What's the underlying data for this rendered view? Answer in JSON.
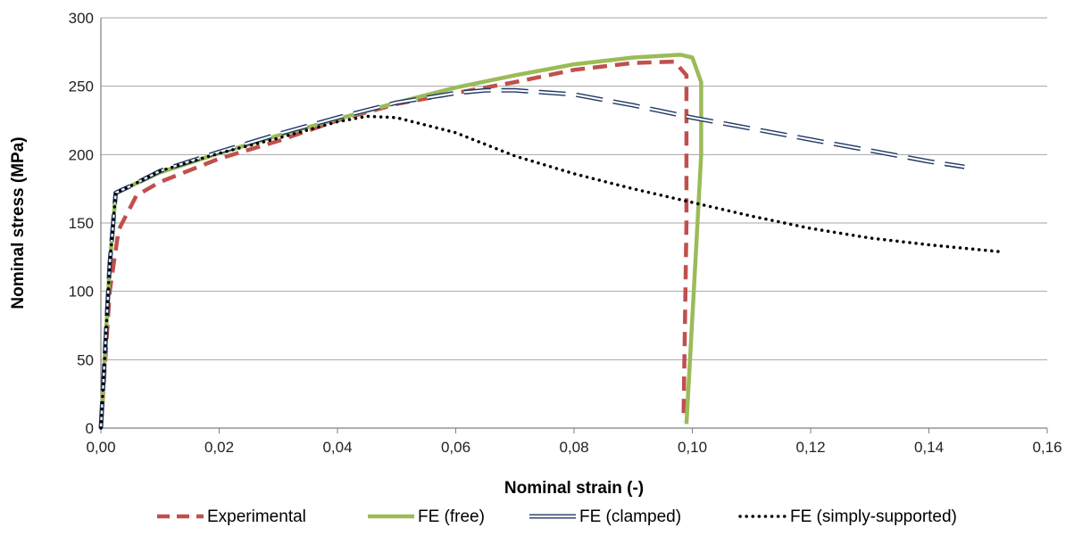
{
  "chart_data": {
    "type": "line",
    "title": "",
    "xlabel": "Nominal strain (-)",
    "ylabel": "Nominal stress (MPa)",
    "xlim": [
      0,
      0.16
    ],
    "ylim": [
      0,
      300
    ],
    "x_ticks": [
      0,
      0.02,
      0.04,
      0.06,
      0.08,
      0.1,
      0.12,
      0.14,
      0.16
    ],
    "x_tick_labels": [
      "0,00",
      "0,02",
      "0,04",
      "0,06",
      "0,08",
      "0,10",
      "0,12",
      "0,14",
      "0,16"
    ],
    "y_ticks": [
      0,
      50,
      100,
      150,
      200,
      250,
      300
    ],
    "y_tick_labels": [
      "0",
      "50",
      "100",
      "150",
      "200",
      "250",
      "300"
    ],
    "grid": "horizontal",
    "legend_position": "bottom",
    "series": [
      {
        "name": "Experimental",
        "style": "dashed",
        "color": "#C0504D",
        "x": [
          0,
          0.0015,
          0.003,
          0.006,
          0.01,
          0.02,
          0.03,
          0.04,
          0.05,
          0.06,
          0.07,
          0.08,
          0.09,
          0.097,
          0.099,
          0.099,
          0.0985
        ],
        "y": [
          0,
          100,
          145,
          170,
          180,
          197,
          210,
          225,
          237,
          245,
          253,
          262,
          267,
          268,
          258,
          150,
          5
        ]
      },
      {
        "name": "FE (free)",
        "style": "solid",
        "color": "#9BBB59",
        "x": [
          0,
          0.0015,
          0.0025,
          0.005,
          0.01,
          0.02,
          0.03,
          0.04,
          0.05,
          0.06,
          0.07,
          0.08,
          0.09,
          0.098,
          0.1,
          0.1015,
          0.1015,
          0.1005,
          0.099
        ],
        "y": [
          0,
          120,
          172,
          177,
          187,
          201,
          214,
          226,
          238,
          249,
          258,
          266,
          271,
          273,
          271,
          253,
          200,
          120,
          3
        ]
      },
      {
        "name": "FE (clamped)",
        "style": "dashed",
        "color": "#1F3864",
        "x": [
          0,
          0.0015,
          0.0025,
          0.005,
          0.01,
          0.02,
          0.03,
          0.04,
          0.05,
          0.06,
          0.065,
          0.07,
          0.08,
          0.09,
          0.1,
          0.11,
          0.12,
          0.13,
          0.14,
          0.146
        ],
        "y": [
          0,
          120,
          172,
          177,
          188,
          202,
          215,
          227,
          238,
          245,
          247,
          247,
          244,
          236,
          227,
          219,
          211,
          203,
          195,
          191
        ]
      },
      {
        "name": "FE (simply-supported)",
        "style": "dotted",
        "color": "#000000",
        "x": [
          0,
          0.0015,
          0.0025,
          0.005,
          0.01,
          0.02,
          0.03,
          0.04,
          0.045,
          0.05,
          0.06,
          0.07,
          0.08,
          0.09,
          0.1,
          0.11,
          0.12,
          0.13,
          0.14,
          0.152
        ],
        "y": [
          0,
          120,
          172,
          177,
          188,
          201,
          212,
          224,
          228,
          227,
          216,
          199,
          186,
          175,
          165,
          155,
          146,
          139,
          134,
          129
        ]
      }
    ]
  }
}
